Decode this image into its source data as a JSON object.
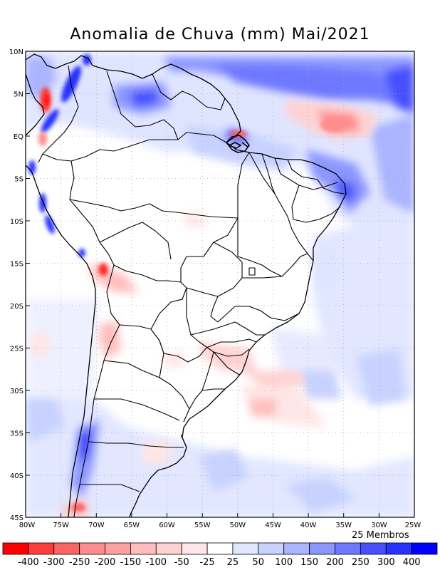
{
  "title": "Anomalia de Chuva (mm) Mai/2021",
  "members": "25 Membros",
  "lat_labels": [
    "10N",
    "5N",
    "EQ",
    "5S",
    "10S",
    "15S",
    "20S",
    "25S",
    "30S",
    "35S",
    "40S",
    "45S"
  ],
  "lon_labels": [
    "80W",
    "75W",
    "70W",
    "65W",
    "60W",
    "55W",
    "50W",
    "45W",
    "40W",
    "35W",
    "30W",
    "25W"
  ],
  "colorbar": {
    "labels": [
      "-400",
      "-300",
      "-250",
      "-200",
      "-150",
      "-100",
      "-50",
      "-25",
      "25",
      "50",
      "100",
      "150",
      "200",
      "250",
      "300",
      "400"
    ],
    "colors": [
      "#ff0000",
      "#ff3c3c",
      "#ff6464",
      "#ff8c8c",
      "#ffa0a0",
      "#ffbebe",
      "#ffd2d2",
      "#ffe6e6",
      "#ffffff",
      "#e1e6ff",
      "#c8d2ff",
      "#aab4ff",
      "#8c96ff",
      "#6e78ff",
      "#4650ff",
      "#2832ff",
      "#0000ff"
    ]
  }
}
